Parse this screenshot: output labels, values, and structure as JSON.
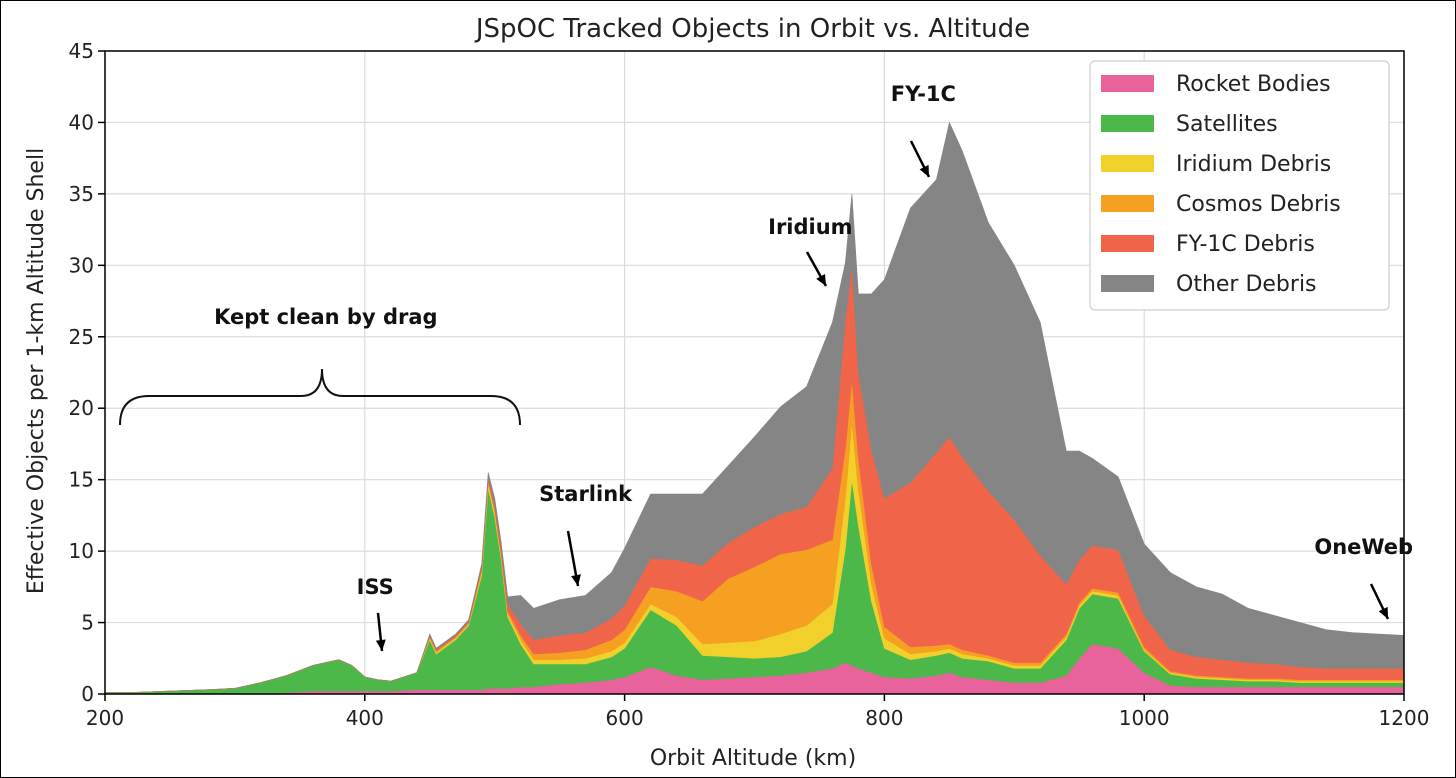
{
  "chart_data": {
    "type": "area",
    "title": "JSpOC Tracked Objects in Orbit vs. Altitude",
    "xlabel": "Orbit Altitude (km)",
    "ylabel": "Effective Objects per 1-km Altitude Shell",
    "xlim": [
      200,
      1200
    ],
    "ylim": [
      0,
      45
    ],
    "xticks": [
      200,
      400,
      600,
      800,
      1000,
      1200
    ],
    "yticks": [
      0,
      5,
      10,
      15,
      20,
      25,
      30,
      35,
      40,
      45
    ],
    "grid": true,
    "stacked": true,
    "legend_position": "top-right",
    "x": [
      200,
      220,
      250,
      280,
      300,
      320,
      340,
      360,
      380,
      390,
      400,
      410,
      420,
      440,
      450,
      455,
      470,
      480,
      490,
      495,
      500,
      505,
      510,
      520,
      530,
      550,
      570,
      590,
      600,
      620,
      640,
      660,
      680,
      700,
      720,
      740,
      760,
      770,
      775,
      780,
      790,
      800,
      820,
      840,
      850,
      860,
      880,
      900,
      920,
      940,
      950,
      960,
      980,
      1000,
      1020,
      1040,
      1060,
      1080,
      1100,
      1120,
      1140,
      1160,
      1180,
      1200
    ],
    "series": [
      {
        "name": "Rocket Bodies",
        "color": "#e8629b",
        "values": [
          0,
          0,
          0,
          0,
          0,
          0,
          0.1,
          0.2,
          0.2,
          0.2,
          0.2,
          0.2,
          0.2,
          0.3,
          0.3,
          0.3,
          0.3,
          0.3,
          0.3,
          0.4,
          0.4,
          0.4,
          0.4,
          0.5,
          0.5,
          0.7,
          0.8,
          1.0,
          1.2,
          1.9,
          1.3,
          1.0,
          1.1,
          1.2,
          1.3,
          1.5,
          1.8,
          2.2,
          2.0,
          1.8,
          1.5,
          1.2,
          1.1,
          1.3,
          1.5,
          1.2,
          1.0,
          0.8,
          0.8,
          1.3,
          2.5,
          3.5,
          3.2,
          1.5,
          0.6,
          0.5,
          0.5,
          0.5,
          0.5,
          0.5,
          0.5,
          0.5,
          0.5,
          0.5
        ]
      },
      {
        "name": "Satellites",
        "color": "#4cb84a",
        "values": [
          0.1,
          0.1,
          0.2,
          0.3,
          0.4,
          0.8,
          1.2,
          1.8,
          2.2,
          1.8,
          1.0,
          0.8,
          0.7,
          1.2,
          3.5,
          2.5,
          3.5,
          4.5,
          8.0,
          14.0,
          12.0,
          9.0,
          5.0,
          3.0,
          1.6,
          1.4,
          1.3,
          1.6,
          2.0,
          4.0,
          3.5,
          1.7,
          1.5,
          1.3,
          1.3,
          1.5,
          2.5,
          8.0,
          13.0,
          10.0,
          5.0,
          2.0,
          1.3,
          1.4,
          1.4,
          1.3,
          1.3,
          1.0,
          1.0,
          2.5,
          3.5,
          3.5,
          3.5,
          1.5,
          0.8,
          0.6,
          0.5,
          0.4,
          0.4,
          0.3,
          0.3,
          0.3,
          0.3,
          0.3
        ]
      },
      {
        "name": "Iridium Debris",
        "color": "#f2d02c",
        "values": [
          0,
          0,
          0,
          0,
          0,
          0,
          0,
          0,
          0,
          0,
          0,
          0,
          0,
          0,
          0.1,
          0.1,
          0.1,
          0.1,
          0.2,
          0.3,
          0.3,
          0.2,
          0.2,
          0.3,
          0.3,
          0.3,
          0.4,
          0.4,
          0.4,
          0.4,
          0.6,
          0.8,
          1.0,
          1.2,
          1.6,
          1.8,
          2.0,
          3.5,
          4.0,
          2.5,
          1.2,
          0.7,
          0.4,
          0.3,
          0.3,
          0.3,
          0.2,
          0.2,
          0.2,
          0.2,
          0.2,
          0.2,
          0.2,
          0.1,
          0.1,
          0.1,
          0.1,
          0.1,
          0.1,
          0.1,
          0.1,
          0.1,
          0.1,
          0.1
        ]
      },
      {
        "name": "Cosmos Debris",
        "color": "#f5a020",
        "values": [
          0,
          0,
          0,
          0,
          0,
          0,
          0,
          0,
          0,
          0,
          0,
          0,
          0,
          0,
          0.1,
          0.1,
          0.1,
          0.1,
          0.2,
          0.2,
          0.2,
          0.2,
          0.2,
          0.3,
          0.4,
          0.5,
          0.6,
          0.8,
          0.9,
          1.2,
          1.8,
          3.0,
          4.5,
          5.2,
          5.6,
          5.3,
          4.5,
          3.5,
          3.0,
          2.2,
          1.4,
          0.8,
          0.5,
          0.4,
          0.3,
          0.3,
          0.2,
          0.2,
          0.2,
          0.2,
          0.2,
          0.2,
          0.2,
          0.2,
          0.1,
          0.1,
          0.1,
          0.1,
          0.1,
          0.1,
          0.1,
          0.1,
          0.1,
          0.1
        ]
      },
      {
        "name": "FY-1C Debris",
        "color": "#f0654a",
        "values": [
          0,
          0,
          0,
          0,
          0,
          0,
          0,
          0,
          0,
          0,
          0,
          0,
          0,
          0,
          0.1,
          0.1,
          0.1,
          0.1,
          0.2,
          0.3,
          0.4,
          0.4,
          0.5,
          0.8,
          1.0,
          1.2,
          1.2,
          1.5,
          1.7,
          2.0,
          2.2,
          2.5,
          2.5,
          2.8,
          2.8,
          3.0,
          5.0,
          9.0,
          8.0,
          6.0,
          8.0,
          9.0,
          11.5,
          13.5,
          14.5,
          13.5,
          11.5,
          10.0,
          7.5,
          3.5,
          3.0,
          3.0,
          3.0,
          2.2,
          1.5,
          1.3,
          1.2,
          1.1,
          1.0,
          0.9,
          0.8,
          0.8,
          0.8,
          0.8
        ]
      },
      {
        "name": "Other Debris",
        "color": "#858585",
        "values": [
          0,
          0,
          0,
          0,
          0,
          0,
          0,
          0,
          0,
          0,
          0,
          0,
          0,
          0,
          0.1,
          0.1,
          0.1,
          0.1,
          0.2,
          0.3,
          0.4,
          0.4,
          0.5,
          2.0,
          2.2,
          2.5,
          2.6,
          3.2,
          4.0,
          4.5,
          4.6,
          5.0,
          5.4,
          6.3,
          7.5,
          8.4,
          10.2,
          4.0,
          5.0,
          5.5,
          10.9,
          15.3,
          19.2,
          19.1,
          22.0,
          21.4,
          18.8,
          17.8,
          16.3,
          9.3,
          7.6,
          6.1,
          5.1,
          5.0,
          5.4,
          4.9,
          4.6,
          3.8,
          3.4,
          3.1,
          2.7,
          2.5,
          2.4,
          2.3
        ]
      }
    ],
    "annotations": [
      {
        "text": "Kept clean by drag",
        "x": 370,
        "y": 25.9
      },
      {
        "text": "ISS",
        "x": 408,
        "y": 7.0
      },
      {
        "text": "Starlink",
        "x": 570,
        "y": 13.5
      },
      {
        "text": "Iridium",
        "x": 743,
        "y": 32.2
      },
      {
        "text": "FY-1C",
        "x": 830,
        "y": 41.5
      },
      {
        "text": "OneWeb",
        "x": 1169,
        "y": 9.8
      }
    ]
  }
}
